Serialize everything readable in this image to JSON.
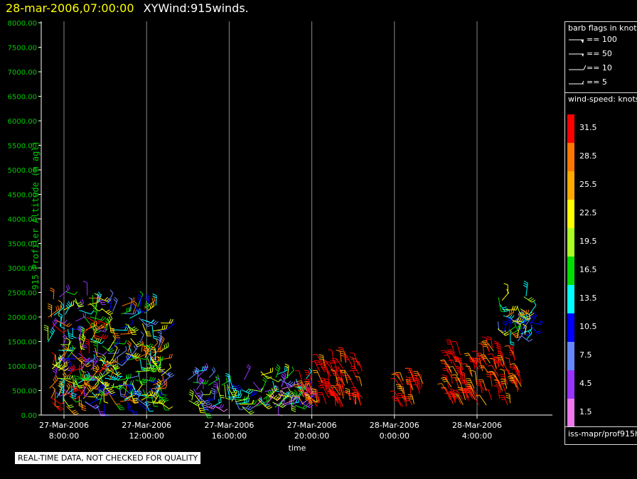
{
  "header": {
    "datetime": "28-mar-2006,07:00:00",
    "title": "XYWind:915winds."
  },
  "chart_data": {
    "type": "scatter",
    "subtype": "wind-barbs",
    "ylabel": "915 Profiler Altitude (m agl)",
    "xlabel": "time",
    "ylim": [
      0,
      8000
    ],
    "yticks": [
      "0.00",
      "500.00",
      "1000.00",
      "1500.00",
      "2000.00",
      "2500.00",
      "3000.00",
      "3500.00",
      "4000.00",
      "4500.00",
      "5000.00",
      "5500.00",
      "6000.00",
      "6500.00",
      "7000.00",
      "7500.00",
      "8000.00"
    ],
    "xticks": [
      {
        "date": "27-Mar-2006",
        "time": "8:00:00"
      },
      {
        "date": "27-Mar-2006",
        "time": "12:00:00"
      },
      {
        "date": "27-Mar-2006",
        "time": "16:00:00"
      },
      {
        "date": "27-Mar-2006",
        "time": "20:00:00"
      },
      {
        "date": "28-Mar-2006",
        "time": "0:00:00"
      },
      {
        "date": "28-Mar-2006",
        "time": "4:00:00"
      }
    ],
    "grid": "vertical",
    "clusters": [
      {
        "t_start": 7.2,
        "t_end": 9.8,
        "z_min": 150,
        "z_max": 2600,
        "speed": "mixed-high"
      },
      {
        "t_start": 9.8,
        "t_end": 12.8,
        "z_min": 200,
        "z_max": 2300,
        "speed": "mixed"
      },
      {
        "t_start": 14.0,
        "t_end": 19.8,
        "z_min": 150,
        "z_max": 900,
        "speed": "mixed-low"
      },
      {
        "t_start": 19.5,
        "t_end": 22.5,
        "z_min": 150,
        "z_max": 1200,
        "speed": "high"
      },
      {
        "t_start": 24.2,
        "t_end": 25.5,
        "z_min": 150,
        "z_max": 900,
        "speed": "high"
      },
      {
        "t_start": 26.5,
        "t_end": 30.2,
        "z_min": 200,
        "z_max": 1400,
        "speed": "high"
      },
      {
        "t_start": 29.0,
        "t_end": 30.6,
        "z_min": 1500,
        "z_max": 2500,
        "speed": "mixed"
      }
    ]
  },
  "legend": {
    "barb_title": "barb flags in knots",
    "barbs": [
      "== 100",
      "== 50",
      "== 10",
      "== 5"
    ],
    "speed_title": "wind-speed: knots",
    "speed_levels": [
      {
        "label": "31.5",
        "color": "#ff0000"
      },
      {
        "label": "28.5",
        "color": "#ff7700"
      },
      {
        "label": "25.5",
        "color": "#ffaa00"
      },
      {
        "label": "22.5",
        "color": "#ffff00"
      },
      {
        "label": "19.5",
        "color": "#aaff22"
      },
      {
        "label": "16.5",
        "color": "#00dd00"
      },
      {
        "label": "13.5",
        "color": "#00ffff"
      },
      {
        "label": "10.5",
        "color": "#0000ff"
      },
      {
        "label": "7.5",
        "color": "#6688ff"
      },
      {
        "label": "4.5",
        "color": "#9933ff"
      },
      {
        "label": "1.5",
        "color": "#ee77ee"
      }
    ]
  },
  "footer": {
    "source_id": "iss-mapr/prof915h",
    "warning": "REAL-TIME DATA, NOT CHECKED FOR QUALITY"
  }
}
